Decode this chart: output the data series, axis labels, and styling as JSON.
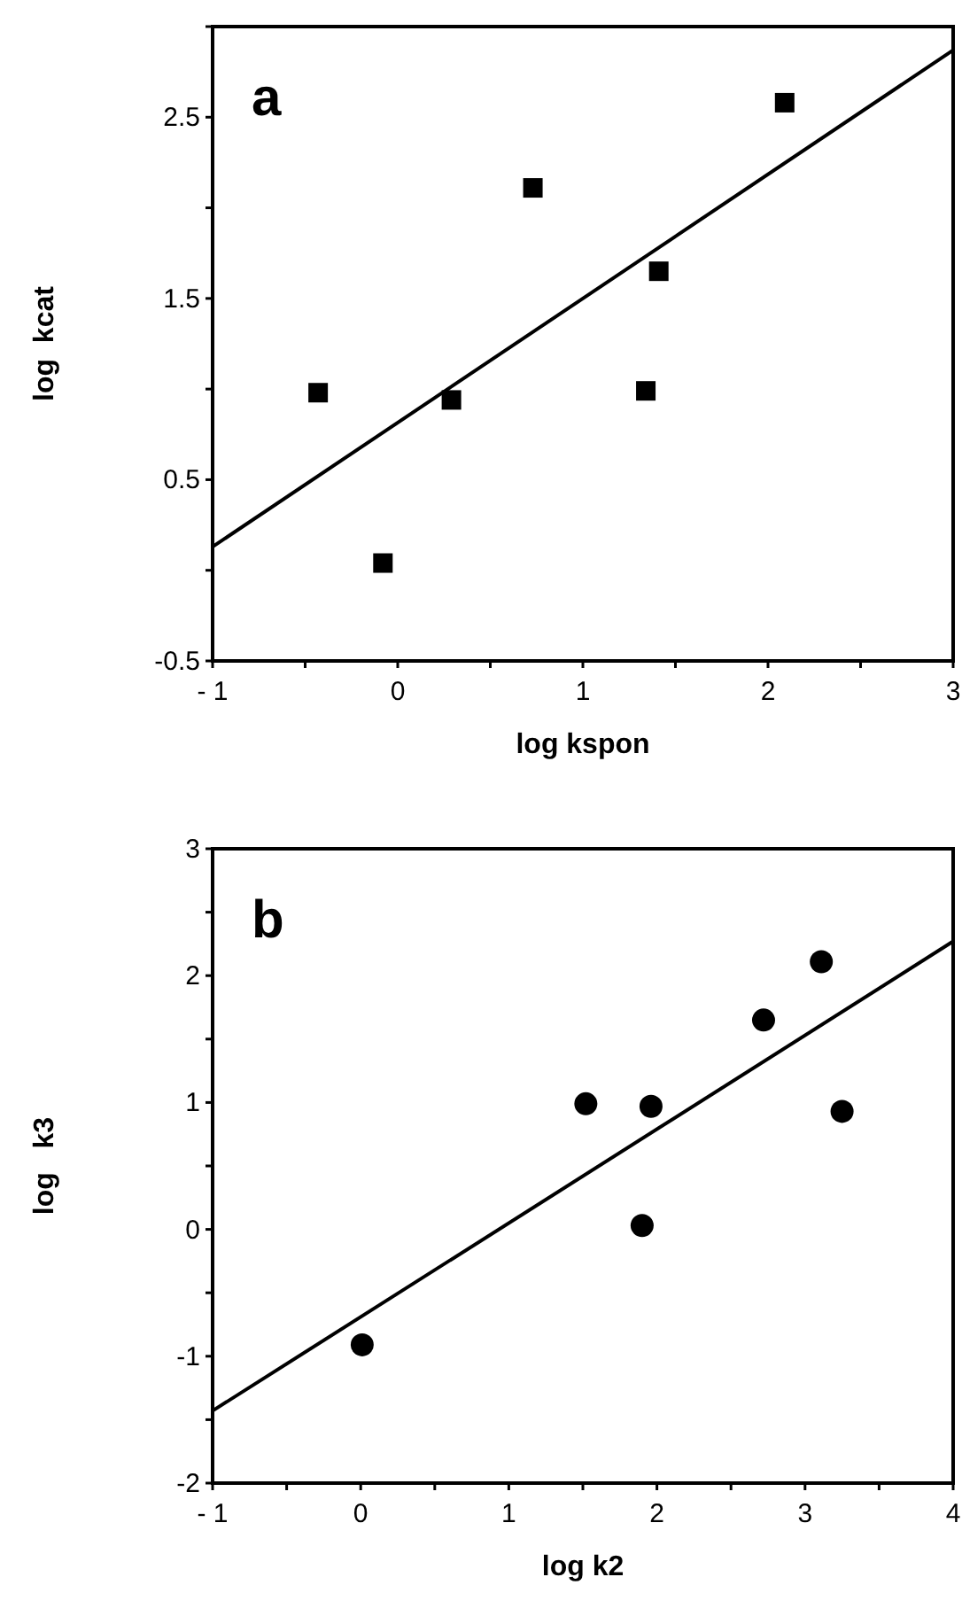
{
  "chart_data": [
    {
      "type": "scatter",
      "xlabel": "log kspon",
      "ylabel": "log  kcat",
      "annotations": [
        "a"
      ],
      "grid": false,
      "xlim": [
        -1,
        3
      ],
      "xticks": [
        {
          "value": -1,
          "label": "- 1"
        },
        {
          "value": -0.5,
          "label": null
        },
        0,
        {
          "value": 0.5,
          "label": null
        },
        1,
        {
          "value": 1.5,
          "label": null
        },
        2,
        {
          "value": 2.5,
          "label": null
        },
        3
      ],
      "ylim": [
        -0.5,
        3
      ],
      "yticks": [
        -0.5,
        {
          "value": 0,
          "label": null
        },
        0.5,
        {
          "value": 1,
          "label": null
        },
        1.5,
        {
          "value": 2,
          "label": null
        },
        2.5,
        {
          "value": 3,
          "label": null
        }
      ],
      "series": [
        {
          "marker": "square",
          "color": "#000000",
          "x": [
            -0.43,
            -0.08,
            0.29,
            0.73,
            1.34,
            1.41,
            2.09
          ],
          "values": [
            0.98,
            0.04,
            0.94,
            2.11,
            0.99,
            1.65,
            2.58
          ]
        },
        {
          "type": "line",
          "marker": "none",
          "color": "#000000",
          "x": [
            -1,
            3
          ],
          "values": [
            0.13,
            2.87
          ]
        }
      ]
    },
    {
      "type": "scatter",
      "xlabel": "log k2",
      "ylabel": "log   k3",
      "annotations": [
        "b"
      ],
      "grid": false,
      "xlim": [
        -1,
        4
      ],
      "xticks": [
        {
          "value": -1,
          "label": "- 1"
        },
        {
          "value": -0.5,
          "label": null
        },
        0,
        {
          "value": 0.5,
          "label": null
        },
        1,
        {
          "value": 1.5,
          "label": null
        },
        2,
        {
          "value": 2.5,
          "label": null
        },
        3,
        {
          "value": 3.5,
          "label": null
        },
        4
      ],
      "ylim": [
        -2,
        3
      ],
      "yticks": [
        -2,
        {
          "value": -1.5,
          "label": null
        },
        -1,
        {
          "value": -0.5,
          "label": null
        },
        0,
        {
          "value": 0.5,
          "label": null
        },
        1,
        {
          "value": 1.5,
          "label": null
        },
        2,
        {
          "value": 2.5,
          "label": null
        },
        3
      ],
      "series": [
        {
          "marker": "circle",
          "color": "#000000",
          "x": [
            0.01,
            1.52,
            1.96,
            1.9,
            2.72,
            3.11,
            3.25
          ],
          "values": [
            -0.91,
            0.99,
            0.97,
            0.03,
            1.65,
            2.11,
            0.93
          ]
        },
        {
          "type": "line",
          "marker": "none",
          "color": "#000000",
          "x": [
            -1,
            4
          ],
          "values": [
            -1.43,
            2.27
          ]
        }
      ]
    }
  ]
}
